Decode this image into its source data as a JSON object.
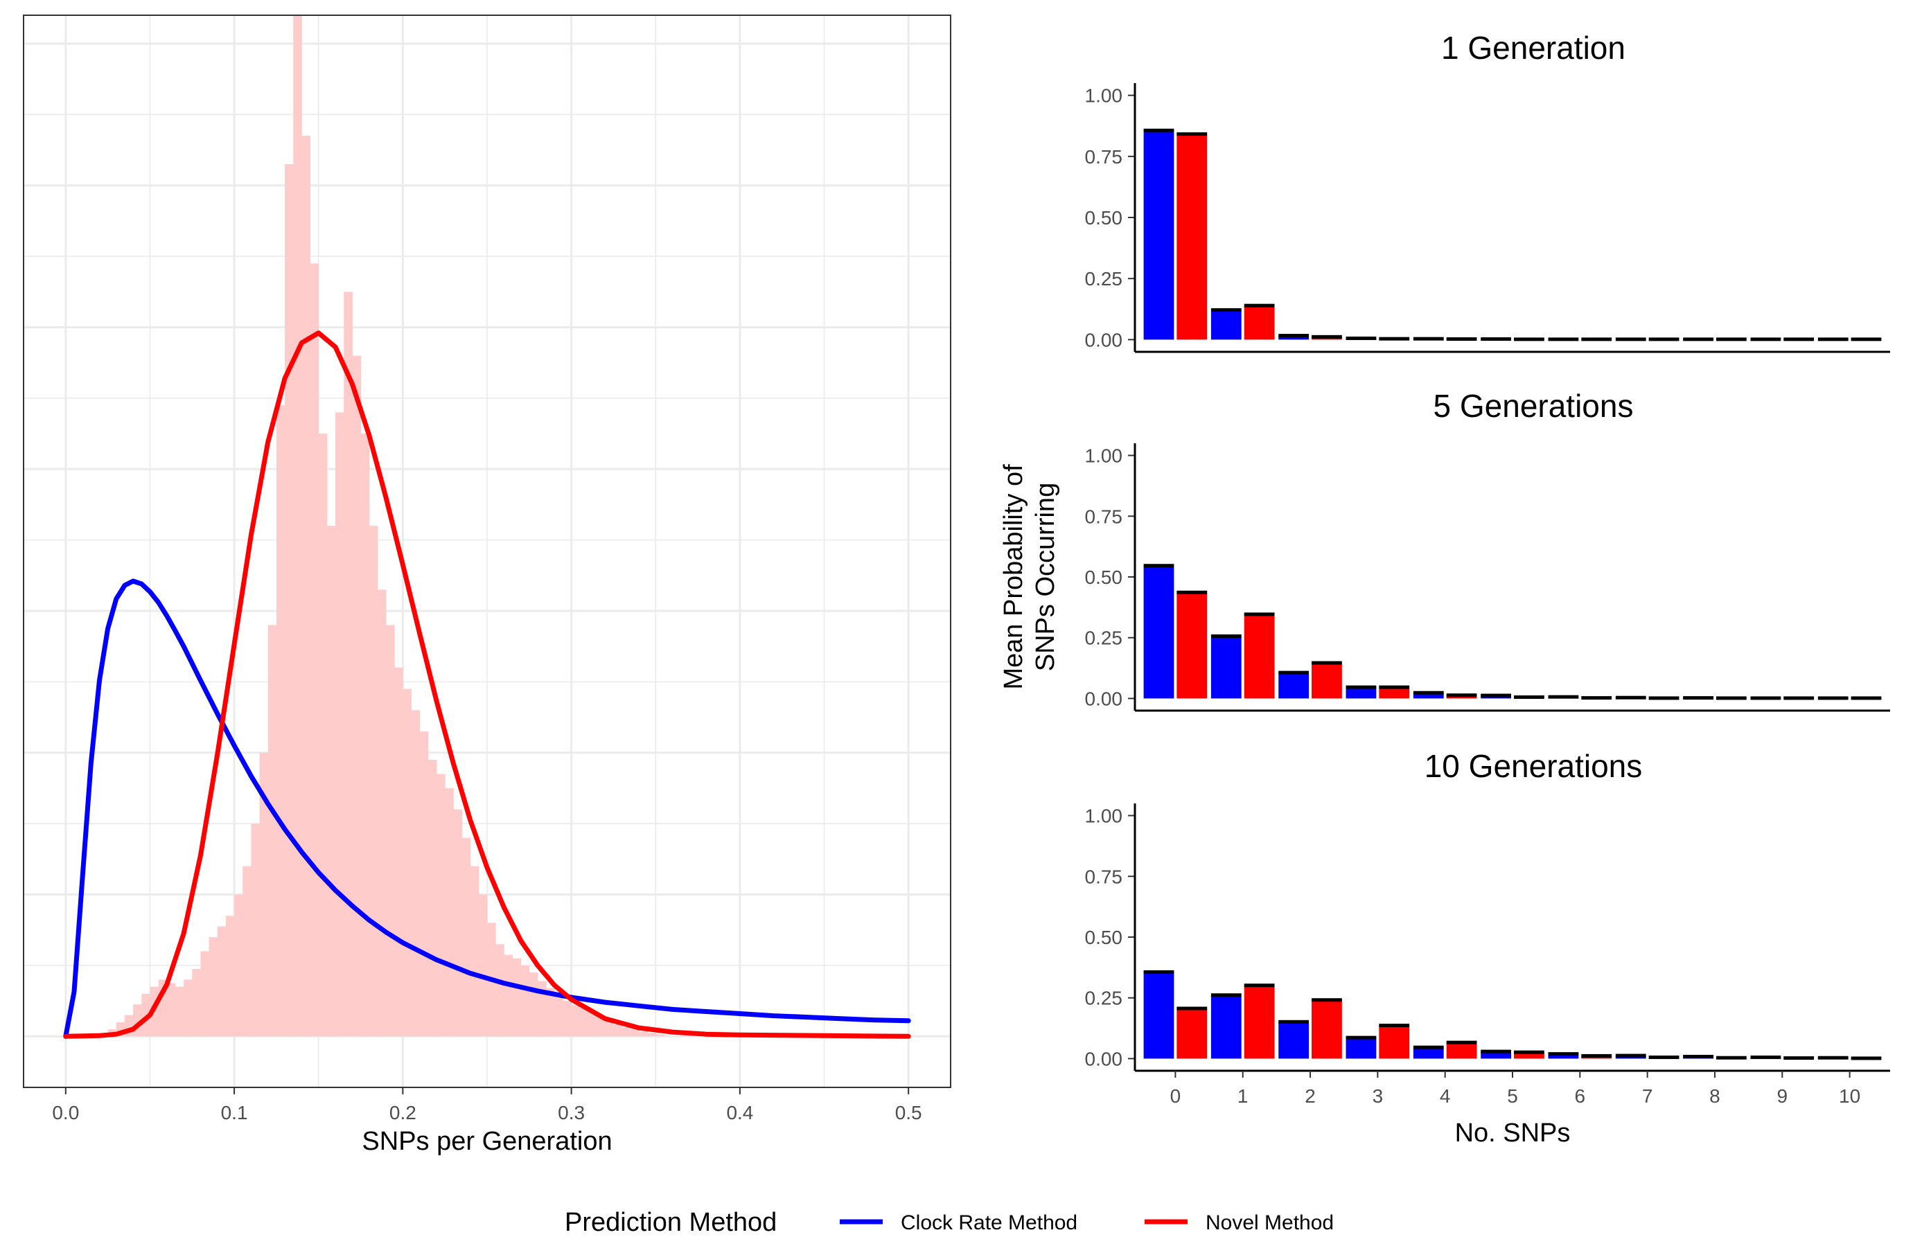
{
  "colors": {
    "clock": "#0000FF",
    "novel": "#FF0000",
    "histogram": "#FFCCCC",
    "error_cap": "#000000",
    "grid": "#EBEBEB"
  },
  "legend": {
    "title": "Prediction Method",
    "items": [
      {
        "label": "Clock Rate Method",
        "color": "#0000FF"
      },
      {
        "label": "Novel Method",
        "color": "#FF0000"
      }
    ]
  },
  "chart_data": [
    {
      "type": "line",
      "title": "",
      "xlabel": "SNPs per Generation",
      "ylabel": "",
      "xlim": [
        0.0,
        0.5
      ],
      "ylim": [
        0,
        14.4
      ],
      "x_ticks": [
        "0.0",
        "0.1",
        "0.2",
        "0.3",
        "0.4",
        "0.5"
      ],
      "grid": true,
      "histogram": {
        "color": "#FFCCCC",
        "bin_width": 0.005,
        "bins": [
          [
            0.02,
            0.05
          ],
          [
            0.025,
            0.1
          ],
          [
            0.03,
            0.2
          ],
          [
            0.035,
            0.3
          ],
          [
            0.04,
            0.45
          ],
          [
            0.045,
            0.6
          ],
          [
            0.05,
            0.7
          ],
          [
            0.055,
            0.8
          ],
          [
            0.06,
            0.75
          ],
          [
            0.065,
            0.7
          ],
          [
            0.07,
            0.8
          ],
          [
            0.075,
            0.95
          ],
          [
            0.08,
            1.2
          ],
          [
            0.085,
            1.4
          ],
          [
            0.09,
            1.55
          ],
          [
            0.095,
            1.7
          ],
          [
            0.1,
            2.0
          ],
          [
            0.105,
            2.4
          ],
          [
            0.11,
            3.0
          ],
          [
            0.115,
            4.0
          ],
          [
            0.12,
            5.8
          ],
          [
            0.125,
            8.9
          ],
          [
            0.13,
            12.3
          ],
          [
            0.135,
            14.4
          ],
          [
            0.14,
            12.7
          ],
          [
            0.145,
            10.9
          ],
          [
            0.15,
            8.5
          ],
          [
            0.155,
            7.2
          ],
          [
            0.16,
            8.8
          ],
          [
            0.165,
            10.5
          ],
          [
            0.17,
            9.6
          ],
          [
            0.175,
            8.5
          ],
          [
            0.18,
            7.2
          ],
          [
            0.185,
            6.3
          ],
          [
            0.19,
            5.8
          ],
          [
            0.195,
            5.2
          ],
          [
            0.2,
            4.9
          ],
          [
            0.205,
            4.6
          ],
          [
            0.21,
            4.3
          ],
          [
            0.215,
            3.9
          ],
          [
            0.22,
            3.7
          ],
          [
            0.225,
            3.5
          ],
          [
            0.23,
            3.2
          ],
          [
            0.235,
            2.8
          ],
          [
            0.24,
            2.4
          ],
          [
            0.245,
            2.0
          ],
          [
            0.25,
            1.6
          ],
          [
            0.255,
            1.3
          ],
          [
            0.26,
            1.15
          ],
          [
            0.265,
            1.1
          ],
          [
            0.27,
            1.0
          ],
          [
            0.275,
            0.9
          ],
          [
            0.28,
            0.78
          ],
          [
            0.285,
            0.68
          ],
          [
            0.29,
            0.58
          ],
          [
            0.295,
            0.5
          ],
          [
            0.3,
            0.44
          ],
          [
            0.305,
            0.4
          ],
          [
            0.31,
            0.34
          ],
          [
            0.315,
            0.28
          ],
          [
            0.32,
            0.22
          ],
          [
            0.325,
            0.17
          ],
          [
            0.33,
            0.13
          ],
          [
            0.335,
            0.1
          ],
          [
            0.34,
            0.07
          ],
          [
            0.345,
            0.05
          ],
          [
            0.35,
            0.03
          ]
        ]
      },
      "series": [
        {
          "name": "Clock Rate Method",
          "color": "#0000FF",
          "x": [
            0.0,
            0.005,
            0.01,
            0.015,
            0.02,
            0.025,
            0.03,
            0.035,
            0.04,
            0.045,
            0.05,
            0.055,
            0.06,
            0.065,
            0.07,
            0.08,
            0.09,
            0.1,
            0.11,
            0.12,
            0.13,
            0.14,
            0.15,
            0.16,
            0.17,
            0.18,
            0.19,
            0.2,
            0.22,
            0.24,
            0.26,
            0.28,
            0.3,
            0.32,
            0.34,
            0.36,
            0.38,
            0.4,
            0.42,
            0.44,
            0.46,
            0.48,
            0.5
          ],
          "y": [
            0.0,
            0.63,
            2.25,
            3.85,
            5.02,
            5.75,
            6.17,
            6.36,
            6.42,
            6.38,
            6.27,
            6.12,
            5.93,
            5.72,
            5.5,
            5.02,
            4.55,
            4.1,
            3.67,
            3.28,
            2.92,
            2.6,
            2.31,
            2.06,
            1.84,
            1.64,
            1.47,
            1.32,
            1.08,
            0.89,
            0.75,
            0.64,
            0.55,
            0.48,
            0.43,
            0.38,
            0.35,
            0.32,
            0.29,
            0.27,
            0.25,
            0.23,
            0.22
          ]
        },
        {
          "name": "Novel Method",
          "color": "#FF0000",
          "x": [
            0.0,
            0.02,
            0.03,
            0.04,
            0.05,
            0.06,
            0.07,
            0.08,
            0.09,
            0.1,
            0.11,
            0.12,
            0.13,
            0.14,
            0.15,
            0.16,
            0.17,
            0.18,
            0.19,
            0.2,
            0.21,
            0.22,
            0.23,
            0.24,
            0.25,
            0.26,
            0.27,
            0.28,
            0.29,
            0.3,
            0.32,
            0.34,
            0.36,
            0.38,
            0.4,
            0.45,
            0.5
          ],
          "y": [
            0.0,
            0.01,
            0.03,
            0.1,
            0.3,
            0.73,
            1.45,
            2.55,
            3.98,
            5.53,
            7.07,
            8.38,
            9.28,
            9.78,
            9.92,
            9.72,
            9.2,
            8.48,
            7.6,
            6.65,
            5.68,
            4.73,
            3.85,
            3.05,
            2.38,
            1.82,
            1.35,
            1.0,
            0.72,
            0.52,
            0.25,
            0.12,
            0.06,
            0.03,
            0.02,
            0.01,
            0.0
          ]
        }
      ]
    },
    {
      "type": "bar",
      "title": "1 Generation",
      "xlabel": "",
      "ylabel": "Mean Probability of SNPs Occurring",
      "ylim": [
        0,
        1.05
      ],
      "y_ticks": [
        "0.00",
        "0.25",
        "0.50",
        "0.75",
        "1.00"
      ],
      "categories": [
        "0",
        "1",
        "2",
        "3",
        "4",
        "5",
        "6",
        "7",
        "8",
        "9",
        "10"
      ],
      "series": [
        {
          "name": "Clock Rate Method",
          "color": "#0000FF",
          "values": [
            0.855,
            0.12,
            0.015,
            0.004,
            0.002,
            0.001,
            0.0,
            0.0,
            0.0,
            0.0,
            0.0
          ]
        },
        {
          "name": "Novel Method",
          "color": "#FF0000",
          "values": [
            0.84,
            0.138,
            0.01,
            0.002,
            0.001,
            0.0,
            0.0,
            0.0,
            0.0,
            0.0,
            0.0
          ]
        }
      ]
    },
    {
      "type": "bar",
      "title": "5 Generations",
      "xlabel": "",
      "ylabel": "Mean Probability of SNPs Occurring",
      "ylim": [
        0,
        1.05
      ],
      "y_ticks": [
        "0.00",
        "0.25",
        "0.50",
        "0.75",
        "1.00"
      ],
      "categories": [
        "0",
        "1",
        "2",
        "3",
        "4",
        "5",
        "6",
        "7",
        "8",
        "9",
        "10"
      ],
      "series": [
        {
          "name": "Clock Rate Method",
          "color": "#0000FF",
          "values": [
            0.545,
            0.255,
            0.105,
            0.045,
            0.022,
            0.011,
            0.005,
            0.002,
            0.001,
            0.0,
            0.0
          ]
        },
        {
          "name": "Novel Method",
          "color": "#FF0000",
          "values": [
            0.435,
            0.345,
            0.145,
            0.045,
            0.012,
            0.004,
            0.001,
            0.0,
            0.0,
            0.0,
            0.0
          ]
        }
      ]
    },
    {
      "type": "bar",
      "title": "10 Generations",
      "xlabel": "No. SNPs",
      "ylabel": "Mean Probability of SNPs Occurring",
      "ylim": [
        0,
        1.05
      ],
      "y_ticks": [
        "0.00",
        "0.25",
        "0.50",
        "0.75",
        "1.00"
      ],
      "categories": [
        "0",
        "1",
        "2",
        "3",
        "4",
        "5",
        "6",
        "7",
        "8",
        "9",
        "10"
      ],
      "series": [
        {
          "name": "Clock Rate Method",
          "color": "#0000FF",
          "values": [
            0.355,
            0.26,
            0.15,
            0.085,
            0.045,
            0.028,
            0.018,
            0.011,
            0.007,
            0.004,
            0.002
          ]
        },
        {
          "name": "Novel Method",
          "color": "#FF0000",
          "values": [
            0.205,
            0.3,
            0.24,
            0.135,
            0.065,
            0.025,
            0.01,
            0.004,
            0.002,
            0.001,
            0.0
          ]
        }
      ]
    }
  ]
}
